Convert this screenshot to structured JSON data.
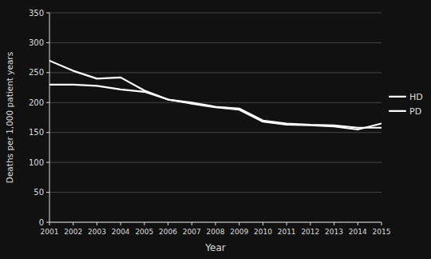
{
  "chart_data": {
    "type": "line",
    "xlabel": "Year",
    "ylabel": "Deaths per 1,000 patient years",
    "x": [
      2001,
      2002,
      2003,
      2004,
      2005,
      2006,
      2007,
      2008,
      2009,
      2010,
      2011,
      2012,
      2013,
      2014,
      2015
    ],
    "series": [
      {
        "name": "HD",
        "color": "#ffffff",
        "values": [
          270,
          253,
          240,
          242,
          220,
          205,
          198,
          192,
          188,
          168,
          163,
          162,
          160,
          155,
          165
        ]
      },
      {
        "name": "PD",
        "color": "#ffffff",
        "values": [
          230,
          230,
          228,
          222,
          218,
          205,
          200,
          193,
          190,
          170,
          165,
          163,
          162,
          158,
          158
        ]
      }
    ],
    "xlim": [
      2001,
      2015
    ],
    "xticks": [
      2001,
      2002,
      2003,
      2004,
      2005,
      2006,
      2007,
      2008,
      2009,
      2010,
      2011,
      2012,
      2013,
      2014,
      2015
    ],
    "ylim": [
      0,
      350
    ],
    "yticks": [
      0,
      50,
      100,
      150,
      200,
      250,
      300,
      350
    ],
    "grid": true,
    "legend": "right"
  }
}
